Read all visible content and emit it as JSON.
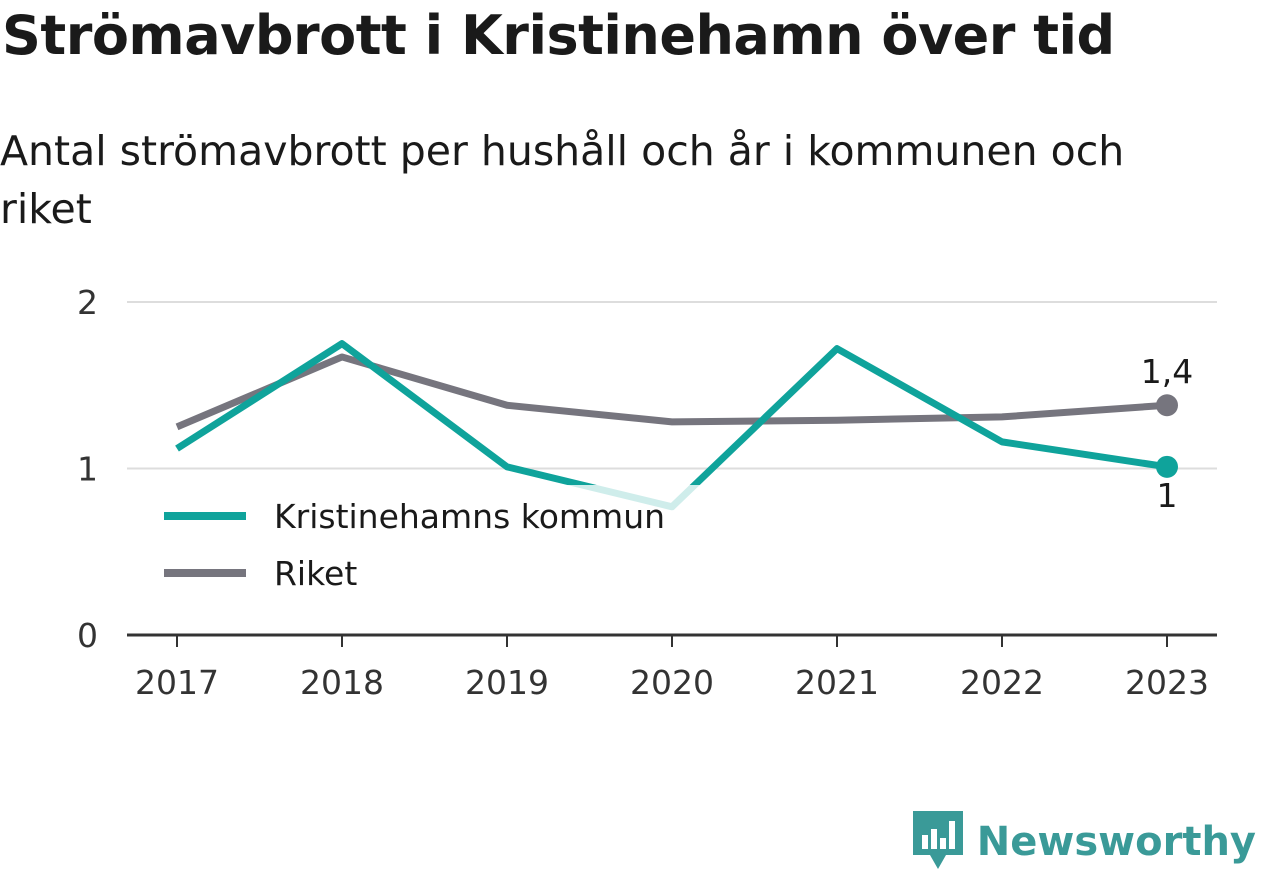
{
  "title": "Strömavbrott i Kristinehamn över tid",
  "subtitle": "Antal strömavbrott per hushåll och år i kommunen och riket",
  "brand": {
    "name": "Newsworthy",
    "icon": "newsworthy-logo-icon",
    "color": "#3a9a98"
  },
  "chart_data": {
    "type": "line",
    "categories": [
      "2017",
      "2018",
      "2019",
      "2020",
      "2021",
      "2022",
      "2023"
    ],
    "ylim": [
      0,
      2
    ],
    "yticks": [
      0,
      1,
      2
    ],
    "grid": true,
    "legend_position": "middle-left",
    "series": [
      {
        "name": "Kristinehamns kommun",
        "color": "#0fa39b",
        "values": [
          1.12,
          1.75,
          1.01,
          0.77,
          1.72,
          1.16,
          1.01
        ],
        "end_label": "1"
      },
      {
        "name": "Riket",
        "color": "#76757e",
        "values": [
          1.25,
          1.67,
          1.38,
          1.28,
          1.29,
          1.31,
          1.38
        ],
        "end_label": "1,4"
      }
    ]
  }
}
